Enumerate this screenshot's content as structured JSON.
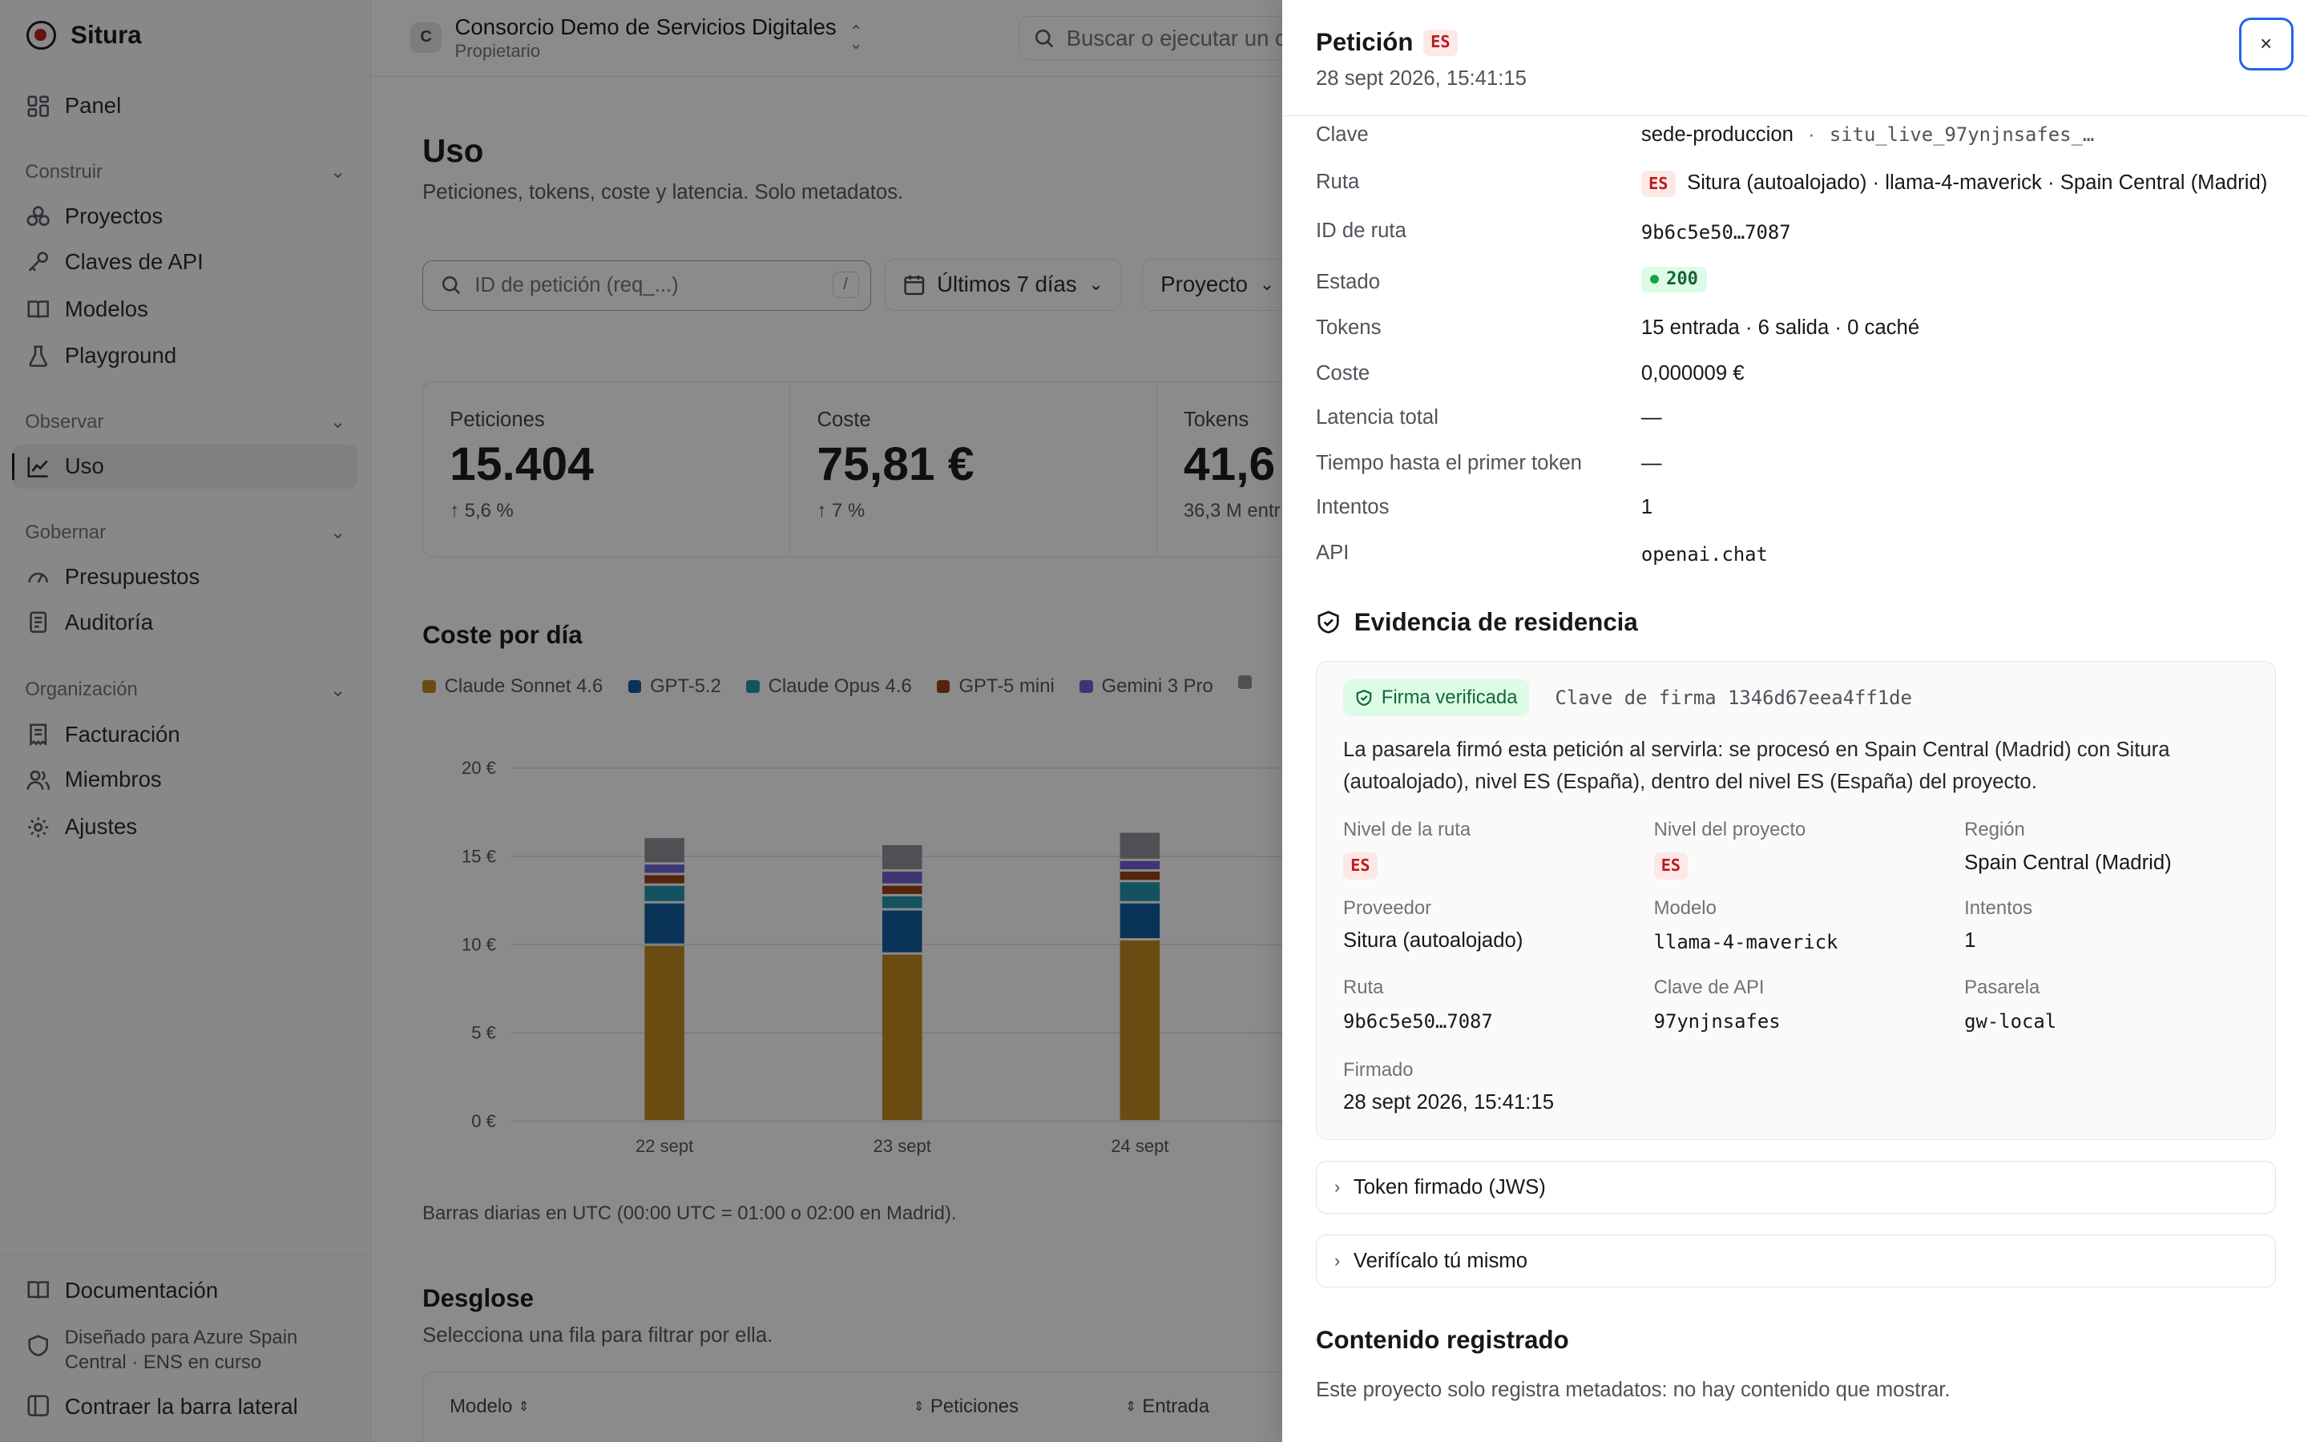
{
  "sidebar": {
    "brand": "Situra",
    "panel": "Panel",
    "sections": {
      "construir": "Construir",
      "observar": "Observar",
      "gobernar": "Gobernar",
      "organizacion": "Organización"
    },
    "items": {
      "proyectos": "Proyectos",
      "claves": "Claves de API",
      "modelos": "Modelos",
      "playground": "Playground",
      "uso": "Uso",
      "presupuestos": "Presupuestos",
      "auditoria": "Auditoría",
      "facturacion": "Facturación",
      "miembros": "Miembros",
      "ajustes": "Ajustes"
    },
    "footer": {
      "docs": "Documentación",
      "note": "Diseñado para Azure Spain Central · ENS en curso",
      "collapse": "Contraer la barra lateral"
    }
  },
  "topbar": {
    "org_initial": "C",
    "org_name": "Consorcio Demo de Servicios Digitales",
    "org_role": "Propietario",
    "search_placeholder": "Buscar o ejecutar un c"
  },
  "main": {
    "title": "Uso",
    "subtitle": "Peticiones, tokens, coste y latencia. Solo metadatos.",
    "request_search_placeholder": "ID de petición (req_...)",
    "request_search_shortcut": "/",
    "range_filter": "Últimos 7 días",
    "project_filter": "Proyecto",
    "stats": [
      {
        "label": "Peticiones",
        "value": "15.404",
        "delta": "↑ 5,6 %"
      },
      {
        "label": "Coste",
        "value": "75,81 €",
        "delta": "↑ 7 %"
      },
      {
        "label": "Tokens",
        "value": "41,6",
        "delta": "36,3 M entr"
      }
    ],
    "cost_section_title": "Coste por día",
    "chart_note": "Barras diarias en UTC (00:00 UTC = 01:00 o 02:00 en Madrid).",
    "breakdown_title": "Desglose",
    "breakdown_sub": "Selecciona una fila para filtrar por ella.",
    "table_headers": {
      "model": "Modelo",
      "requests": "Peticiones",
      "input": "Entrada"
    }
  },
  "colors": {
    "claude_sonnet": "#c0891b",
    "gpt52": "#0b5c9e",
    "claude_opus": "#1f94ad",
    "gpt5mini": "#9a3e0f",
    "gemini": "#6c5fd0",
    "other": "#8f8f96"
  },
  "chart_data": {
    "type": "bar",
    "stacked": true,
    "categories": [
      "22 sept",
      "23 sept",
      "24 sept"
    ],
    "series": [
      {
        "name": "Claude Sonnet 4.6",
        "color": "#c0891b",
        "values": [
          10.0,
          9.5,
          10.3
        ]
      },
      {
        "name": "GPT-5.2",
        "color": "#0b5c9e",
        "values": [
          2.4,
          2.5,
          2.1
        ]
      },
      {
        "name": "Claude Opus 4.6",
        "color": "#1f94ad",
        "values": [
          1.0,
          0.8,
          1.2
        ]
      },
      {
        "name": "GPT-5 mini",
        "color": "#9a3e0f",
        "values": [
          0.6,
          0.6,
          0.6
        ]
      },
      {
        "name": "Gemini 3 Pro",
        "color": "#6c5fd0",
        "values": [
          0.6,
          0.8,
          0.6
        ]
      },
      {
        "name": "",
        "color": "#8f8f96",
        "values": [
          1.5,
          1.5,
          1.6
        ]
      }
    ],
    "y_ticks": [
      "0 €",
      "5 €",
      "10 €",
      "15 €",
      "20 €"
    ],
    "ylim": [
      0,
      20
    ],
    "grid": true
  },
  "drawer": {
    "title": "Petición",
    "tier_badge": "ES",
    "timestamp": "28 sept 2026, 15:41:15",
    "close_label": "×",
    "fields": {
      "clave_label": "Clave",
      "clave_name": "sede-produccion",
      "clave_sep": "·",
      "clave_id": "situ_live_97ynjnsafes_…",
      "ruta_label": "Ruta",
      "ruta_badge": "ES",
      "ruta_value": "Situra (autoalojado) · llama-4-maverick · Spain Central (Madrid)",
      "id_ruta_label": "ID de ruta",
      "id_ruta_value": "9b6c5e50…7087",
      "estado_label": "Estado",
      "estado_value": "200",
      "tokens_label": "Tokens",
      "tokens_value": "15 entrada · 6 salida · 0 caché",
      "coste_label": "Coste",
      "coste_value": "0,000009 €",
      "latencia_label": "Latencia total",
      "latencia_value": "—",
      "ttft_label": "Tiempo hasta el primer token",
      "ttft_value": "—",
      "intentos_label": "Intentos",
      "intentos_value": "1",
      "api_label": "API",
      "api_value": "openai.chat"
    },
    "evidence": {
      "title": "Evidencia de residencia",
      "verified": "Firma verificada",
      "signing_key": "Clave de firma 1346d67eea4ff1de",
      "paragraph": "La pasarela firmó esta petición al servirla: se procesó en Spain Central (Madrid) con Situra (autoalojado), nivel ES (España), dentro del nivel ES (España) del proyecto.",
      "route_tier_label": "Nivel de la ruta",
      "route_tier_value": "ES",
      "project_tier_label": "Nivel del proyecto",
      "project_tier_value": "ES",
      "region_label": "Región",
      "region_value": "Spain Central (Madrid)",
      "provider_label": "Proveedor",
      "provider_value": "Situra (autoalojado)",
      "model_label": "Modelo",
      "model_value": "llama-4-maverick",
      "attempts_label": "Intentos",
      "attempts_value": "1",
      "route_label": "Ruta",
      "route_value": "9b6c5e50…7087",
      "apikey_label": "Clave de API",
      "apikey_value": "97ynjnsafes",
      "gateway_label": "Pasarela",
      "gateway_value": "gw-local",
      "signed_label": "Firmado",
      "signed_value": "28 sept 2026, 15:41:15"
    },
    "jws_label": "Token firmado (JWS)",
    "verify_label": "Verifícalo tú mismo",
    "content_title": "Contenido registrado",
    "content_sub": "Este proyecto solo registra metadatos: no hay contenido que mostrar."
  }
}
